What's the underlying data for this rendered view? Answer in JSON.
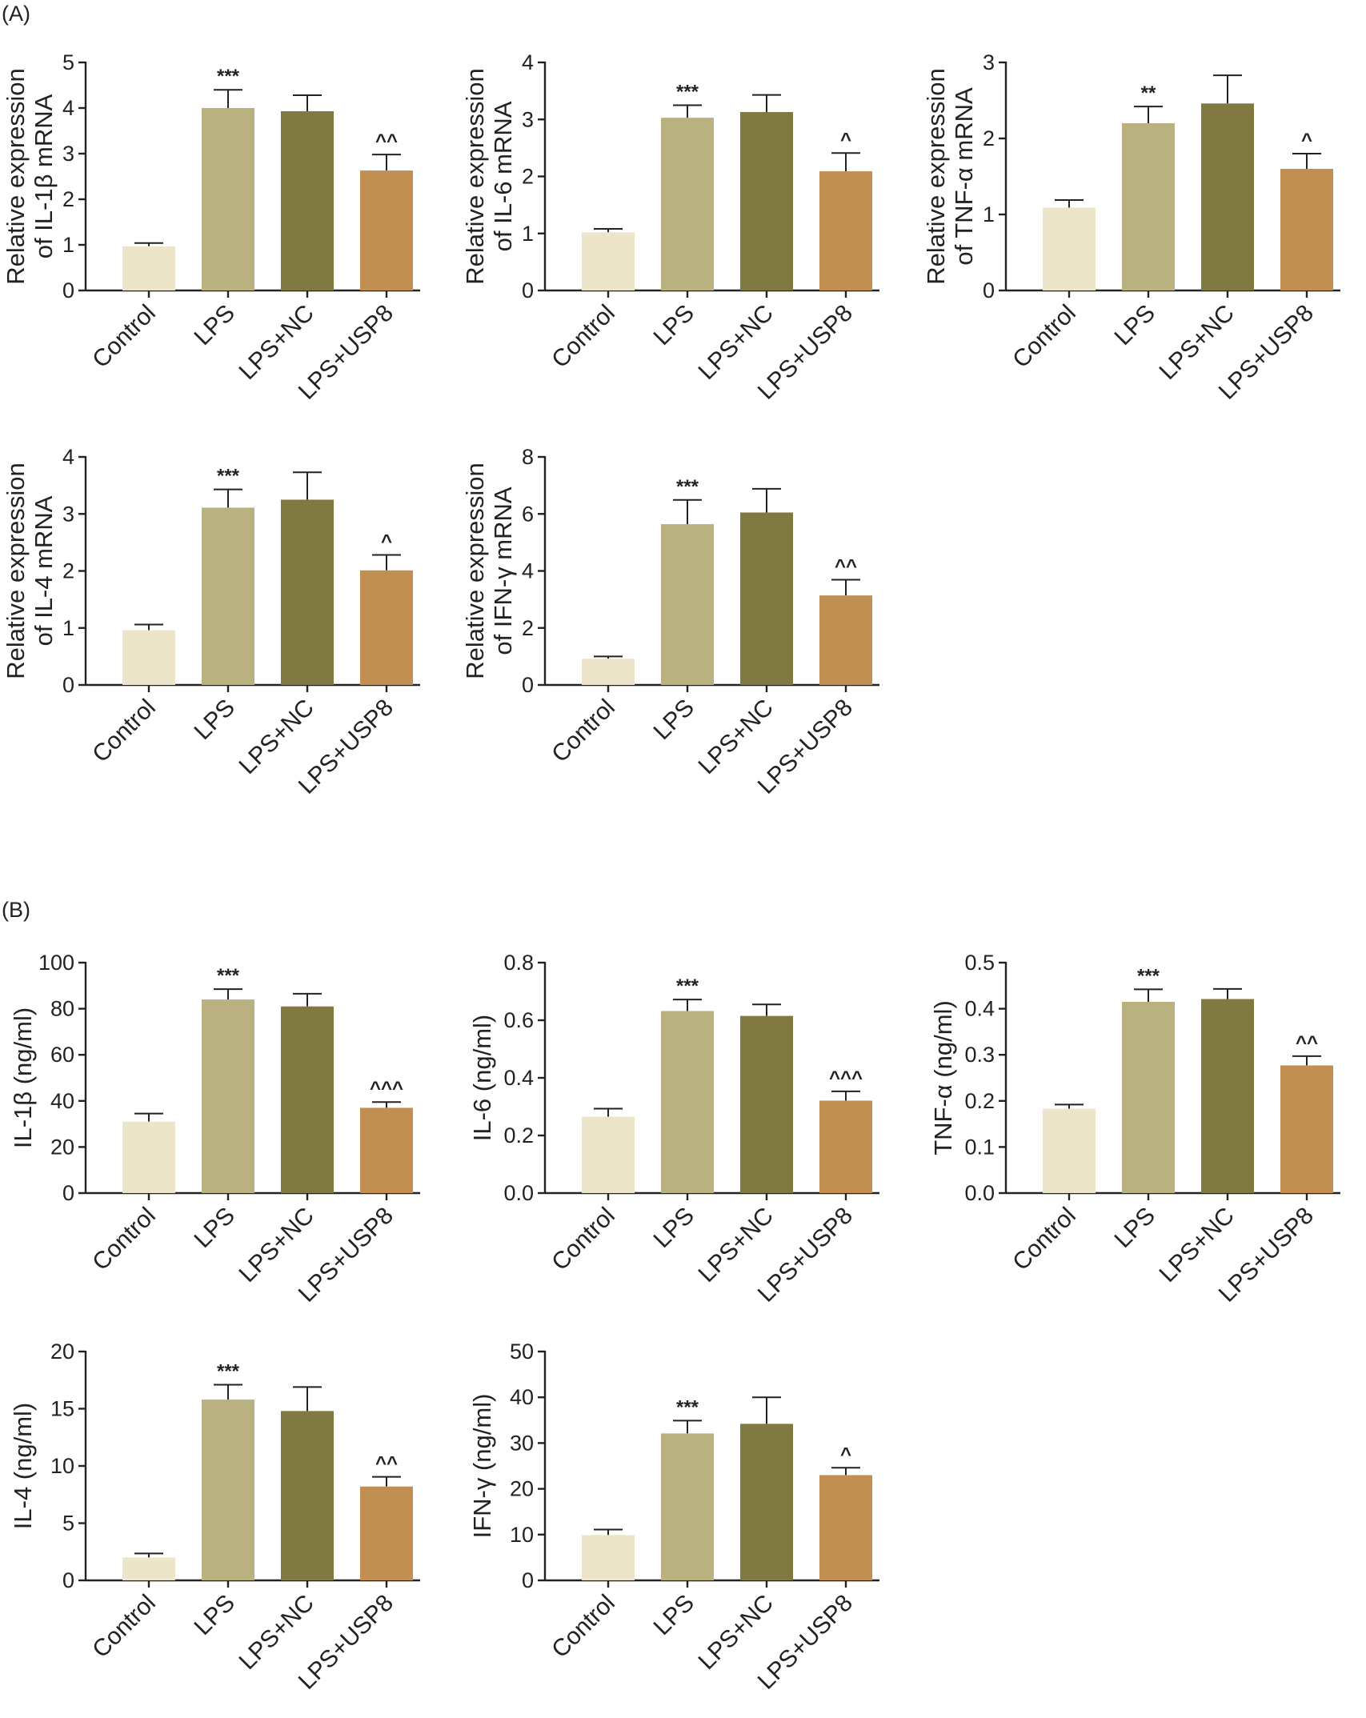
{
  "panels": [
    {
      "label": "(A)"
    },
    {
      "label": "(B)"
    }
  ],
  "colors": {
    "Control": "#ece5c9",
    "LPS": "#b9b180",
    "LPS+NC": "#817942",
    "LPS+USP8": "#c28f52",
    "axis": "#222222"
  },
  "chart_data": [
    {
      "type": "bar",
      "panel": "(A)",
      "categories": [
        "Control",
        "LPS",
        "LPS+NC",
        "LPS+USP8"
      ],
      "values": [
        0.97,
        4.0,
        3.93,
        2.63
      ],
      "errors": [
        0.07,
        0.4,
        0.35,
        0.35
      ],
      "significance": [
        "",
        "***",
        "",
        "^^"
      ],
      "ylabel": [
        "Relative expression",
        "of IL-1β mRNA"
      ],
      "ylim": [
        0,
        5
      ],
      "yticks": [
        0,
        1,
        2,
        3,
        4,
        5
      ]
    },
    {
      "type": "bar",
      "panel": "(A)",
      "categories": [
        "Control",
        "LPS",
        "LPS+NC",
        "LPS+USP8"
      ],
      "values": [
        1.02,
        3.03,
        3.13,
        2.09
      ],
      "errors": [
        0.06,
        0.22,
        0.3,
        0.32
      ],
      "significance": [
        "",
        "***",
        "",
        "^"
      ],
      "ylabel": [
        "Relative expression",
        "of IL-6 mRNA"
      ],
      "ylim": [
        0,
        4
      ],
      "yticks": [
        0,
        1,
        2,
        3,
        4
      ]
    },
    {
      "type": "bar",
      "panel": "(A)",
      "categories": [
        "Control",
        "LPS",
        "LPS+NC",
        "LPS+USP8"
      ],
      "values": [
        1.09,
        2.2,
        2.46,
        1.6
      ],
      "errors": [
        0.1,
        0.22,
        0.37,
        0.2
      ],
      "significance": [
        "",
        "**",
        "",
        "^"
      ],
      "ylabel": [
        "Relative expression",
        "of TNF-α mRNA"
      ],
      "ylim": [
        0,
        3
      ],
      "yticks": [
        0,
        1,
        2,
        3
      ]
    },
    {
      "type": "bar",
      "panel": "(A)",
      "categories": [
        "Control",
        "LPS",
        "LPS+NC",
        "LPS+USP8"
      ],
      "values": [
        0.96,
        3.11,
        3.25,
        2.01
      ],
      "errors": [
        0.1,
        0.32,
        0.48,
        0.27
      ],
      "significance": [
        "",
        "***",
        "",
        "^"
      ],
      "ylabel": [
        "Relative expression",
        "of IL-4 mRNA"
      ],
      "ylim": [
        0,
        4
      ],
      "yticks": [
        0,
        1,
        2,
        3,
        4
      ]
    },
    {
      "type": "bar",
      "panel": "(A)",
      "categories": [
        "Control",
        "LPS",
        "LPS+NC",
        "LPS+USP8"
      ],
      "values": [
        0.92,
        5.64,
        6.05,
        3.14
      ],
      "errors": [
        0.08,
        0.85,
        0.83,
        0.55
      ],
      "significance": [
        "",
        "***",
        "",
        "^^"
      ],
      "ylabel": [
        "Relative expression",
        "of IFN-γ mRNA"
      ],
      "ylim": [
        0,
        8
      ],
      "yticks": [
        0,
        2,
        4,
        6,
        8
      ]
    },
    {
      "type": "bar",
      "panel": "(B)",
      "categories": [
        "Control",
        "LPS",
        "LPS+NC",
        "LPS+USP8"
      ],
      "values": [
        31,
        84,
        81,
        37
      ],
      "errors": [
        3.5,
        4.5,
        5.5,
        2.5
      ],
      "significance": [
        "",
        "***",
        "",
        "^^^"
      ],
      "ylabel": [
        "IL-1β (ng/ml)"
      ],
      "ylim": [
        0,
        100
      ],
      "yticks": [
        0,
        20,
        40,
        60,
        80,
        100
      ]
    },
    {
      "type": "bar",
      "panel": "(B)",
      "categories": [
        "Control",
        "LPS",
        "LPS+NC",
        "LPS+USP8"
      ],
      "values": [
        0.265,
        0.632,
        0.615,
        0.321
      ],
      "errors": [
        0.028,
        0.04,
        0.04,
        0.032
      ],
      "significance": [
        "",
        "***",
        "",
        "^^^"
      ],
      "ylabel": [
        "IL-6 (ng/ml)"
      ],
      "ylim": [
        0,
        0.8
      ],
      "yticks": [
        "0.0",
        "0.2",
        "0.4",
        "0.6",
        "0.8"
      ]
    },
    {
      "type": "bar",
      "panel": "(B)",
      "categories": [
        "Control",
        "LPS",
        "LPS+NC",
        "LPS+USP8"
      ],
      "values": [
        0.183,
        0.415,
        0.421,
        0.277
      ],
      "errors": [
        0.009,
        0.027,
        0.022,
        0.02
      ],
      "significance": [
        "",
        "***",
        "",
        "^^"
      ],
      "ylabel": [
        "TNF-α (ng/ml)"
      ],
      "ylim": [
        0,
        0.5
      ],
      "yticks": [
        "0.0",
        "0.1",
        "0.2",
        "0.3",
        "0.4",
        "0.5"
      ]
    },
    {
      "type": "bar",
      "panel": "(B)",
      "categories": [
        "Control",
        "LPS",
        "LPS+NC",
        "LPS+USP8"
      ],
      "values": [
        2.0,
        15.8,
        14.8,
        8.2
      ],
      "errors": [
        0.35,
        1.3,
        2.1,
        0.85
      ],
      "significance": [
        "",
        "***",
        "",
        "^^"
      ],
      "ylabel": [
        "IL-4 (ng/ml)"
      ],
      "ylim": [
        0,
        20
      ],
      "yticks": [
        0,
        5,
        10,
        15,
        20
      ]
    },
    {
      "type": "bar",
      "panel": "(B)",
      "categories": [
        "Control",
        "LPS",
        "LPS+NC",
        "LPS+USP8"
      ],
      "values": [
        9.9,
        32.1,
        34.2,
        23.0
      ],
      "errors": [
        1.2,
        2.8,
        5.8,
        1.6
      ],
      "significance": [
        "",
        "***",
        "",
        "^"
      ],
      "ylabel": [
        "IFN-γ (ng/ml)"
      ],
      "ylim": [
        0,
        50
      ],
      "yticks": [
        0,
        10,
        20,
        30,
        40,
        50
      ]
    }
  ]
}
